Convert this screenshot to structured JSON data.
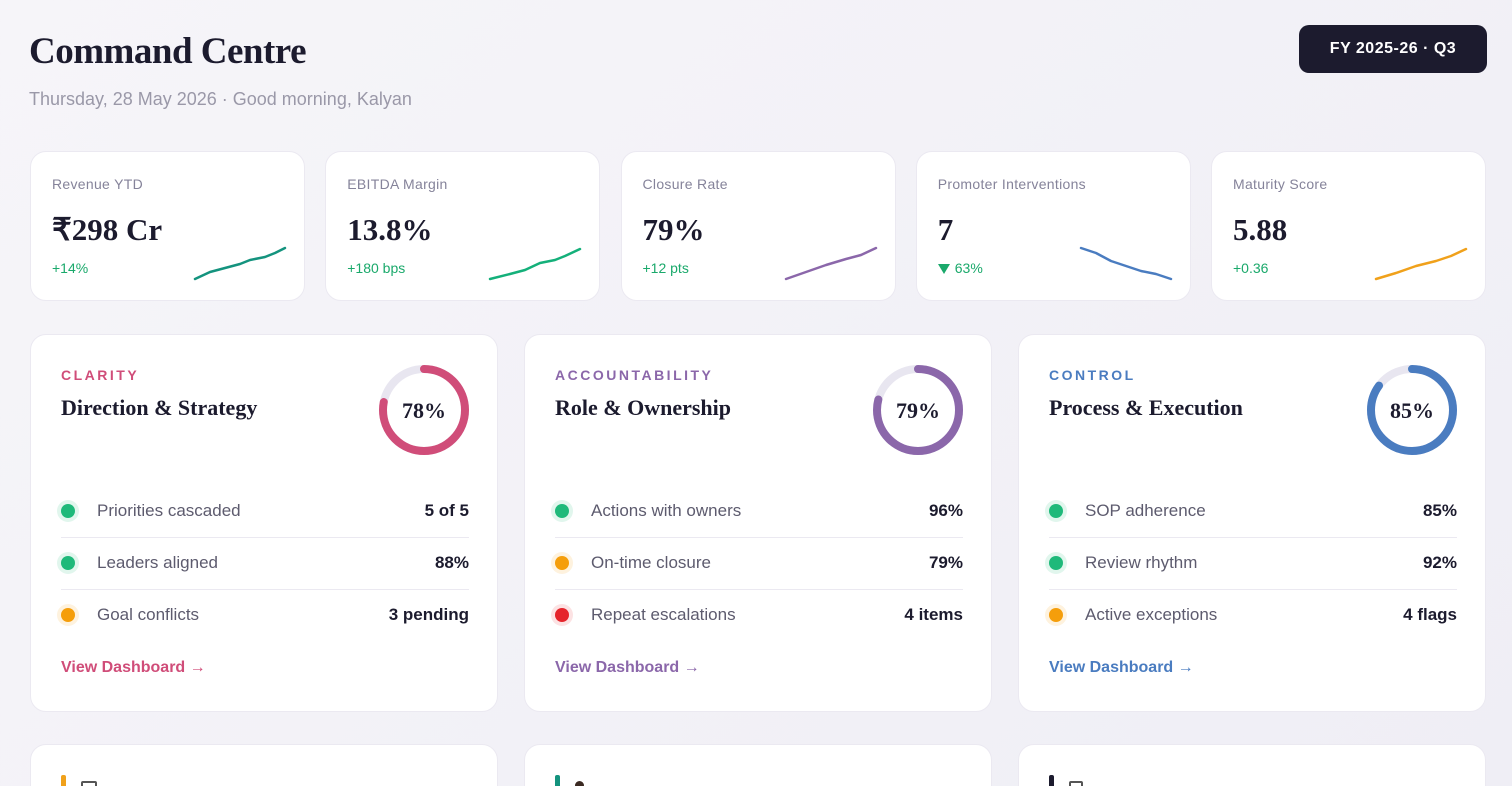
{
  "header": {
    "title": "Command Centre",
    "subtitle": "Thursday, 28 May 2026 · Good morning, Kalyan",
    "period": "FY 2025-26 · Q3"
  },
  "kpis": [
    {
      "label": "Revenue YTD",
      "value": "₹298 Cr",
      "delta": "+14%"
    },
    {
      "label": "EBITDA Margin",
      "value": "13.8%",
      "delta": "+180 bps"
    },
    {
      "label": "Closure Rate",
      "value": "79%",
      "delta": "+12 pts"
    },
    {
      "label": "Promoter Interventions",
      "value": "7",
      "delta": "63%"
    },
    {
      "label": "Maturity Score",
      "value": "5.88",
      "delta": "+0.36"
    }
  ],
  "pillars": [
    {
      "category": "CLARITY",
      "title": "Direction & Strategy",
      "color": "#d04d79",
      "score": {
        "value": 78,
        "label": "78%"
      },
      "rows": [
        {
          "label": "Priorities cascaded",
          "value": "5 of 5",
          "dot": "#1fb97a"
        },
        {
          "label": "Leaders aligned",
          "value": "88%",
          "dot": "#1fb97a"
        },
        {
          "label": "Goal conflicts",
          "value": "3 pending",
          "dot": "#f59e0b"
        }
      ],
      "link": "View Dashboard →"
    },
    {
      "category": "ACCOUNTABILITY",
      "title": "Role & Ownership",
      "color": "#8b67aa",
      "score": {
        "value": 79,
        "label": "79%"
      },
      "rows": [
        {
          "label": "Actions with owners",
          "value": "96%",
          "dot": "#1fb97a"
        },
        {
          "label": "On-time closure",
          "value": "79%",
          "dot": "#f59e0b"
        },
        {
          "label": "Repeat escalations",
          "value": "4 items",
          "dot": "#e5242b"
        }
      ],
      "link": "View Dashboard →"
    },
    {
      "category": "CONTROL",
      "title": "Process & Execution",
      "color": "#4a7cc0",
      "score": {
        "value": 85,
        "label": "85%"
      },
      "rows": [
        {
          "label": "SOP adherence",
          "value": "85%",
          "dot": "#1fb97a"
        },
        {
          "label": "Review rhythm",
          "value": "92%",
          "dot": "#1fb97a"
        },
        {
          "label": "Active exceptions",
          "value": "4 flags",
          "dot": "#f59e0b"
        }
      ],
      "link": "View Dashboard →"
    }
  ]
}
